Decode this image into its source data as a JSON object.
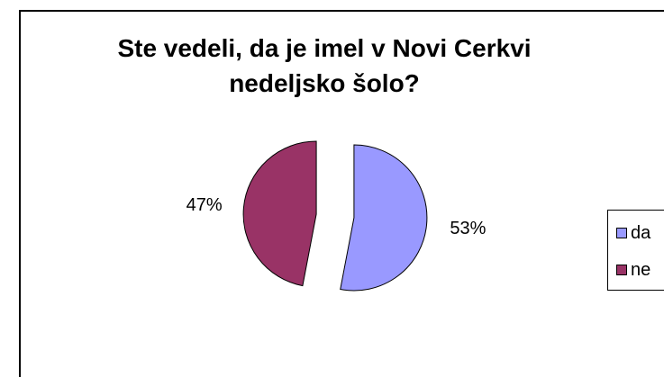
{
  "chart_data": {
    "type": "pie",
    "title": "Ste vedeli, da je imel v Novi Cerkvi nedeljsko šolo?",
    "title_lines": [
      "Ste vedeli, da je imel v Novi Cerkvi",
      "nedeljsko šolo?"
    ],
    "categories": [
      "da",
      "ne"
    ],
    "values": [
      53,
      47
    ],
    "labels": [
      "53%",
      "47%"
    ],
    "colors": [
      "#9999ff",
      "#993366"
    ],
    "legend_position": "right",
    "exploded": true
  }
}
